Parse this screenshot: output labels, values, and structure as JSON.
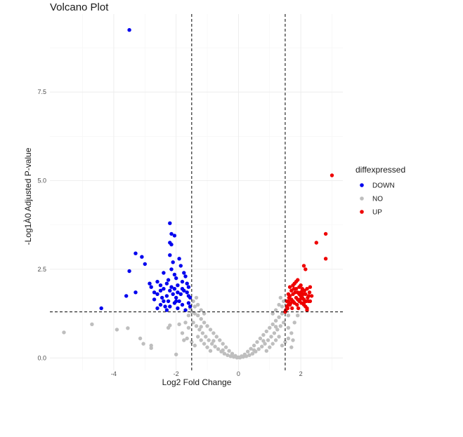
{
  "chart_data": {
    "type": "scatter",
    "title": "Volcano Plot",
    "xlabel": "Log2 Fold Change",
    "ylabel": "-Log1À0 Adjusted P-value",
    "xlim": [
      -6.05,
      3.35
    ],
    "ylim": [
      -0.35,
      9.7
    ],
    "x_ticks": [
      -4,
      -2,
      0,
      2
    ],
    "x_tick_labels": [
      "-4",
      "-2",
      "0",
      "2"
    ],
    "y_ticks": [
      0,
      2.5,
      5,
      7.5
    ],
    "y_tick_labels": [
      "0.0",
      "2.5",
      "5.0",
      "7.5"
    ],
    "grid": true,
    "thresholds": {
      "x": [
        -1.5,
        1.5
      ],
      "y": 1.3
    },
    "legend": {
      "title": "diffexpressed",
      "position": "right",
      "entries": [
        {
          "label": "DOWN",
          "color": "#0000ee"
        },
        {
          "label": "NO",
          "color": "#bebebe"
        },
        {
          "label": "UP",
          "color": "#ee0000"
        }
      ]
    },
    "series": [
      {
        "name": "NO",
        "color": "#bebebe",
        "points": [
          [
            -5.6,
            0.72
          ],
          [
            -4.7,
            0.95
          ],
          [
            -3.9,
            0.8
          ],
          [
            -3.55,
            0.84
          ],
          [
            -3.15,
            0.55
          ],
          [
            -3.05,
            0.4
          ],
          [
            -2.8,
            0.35
          ],
          [
            -2.8,
            0.28
          ],
          [
            -2.0,
            0.1
          ],
          [
            -2.2,
            0.92
          ],
          [
            -2.25,
            0.85
          ],
          [
            -1.9,
            0.95
          ],
          [
            -1.5,
            1.3
          ],
          [
            -1.4,
            1.25
          ],
          [
            -1.3,
            1.2
          ],
          [
            -1.2,
            1.1
          ],
          [
            -1.1,
            1.0
          ],
          [
            -1.0,
            0.9
          ],
          [
            -0.9,
            0.8
          ],
          [
            -0.8,
            0.7
          ],
          [
            -0.7,
            0.6
          ],
          [
            -0.6,
            0.5
          ],
          [
            -0.5,
            0.4
          ],
          [
            -0.4,
            0.3
          ],
          [
            -0.3,
            0.2
          ],
          [
            -0.2,
            0.12
          ],
          [
            -0.1,
            0.06
          ],
          [
            0.0,
            0.02
          ],
          [
            0.1,
            0.05
          ],
          [
            0.2,
            0.1
          ],
          [
            0.3,
            0.18
          ],
          [
            0.4,
            0.26
          ],
          [
            0.5,
            0.35
          ],
          [
            0.6,
            0.45
          ],
          [
            0.7,
            0.55
          ],
          [
            0.8,
            0.65
          ],
          [
            0.9,
            0.75
          ],
          [
            1.0,
            0.85
          ],
          [
            1.1,
            0.95
          ],
          [
            1.2,
            1.05
          ],
          [
            1.3,
            1.15
          ],
          [
            1.4,
            1.25
          ],
          [
            1.5,
            1.3
          ],
          [
            -1.45,
            1.0
          ],
          [
            -1.35,
            0.9
          ],
          [
            -1.25,
            0.8
          ],
          [
            -1.15,
            0.7
          ],
          [
            -1.05,
            0.6
          ],
          [
            -0.95,
            0.5
          ],
          [
            -0.85,
            0.4
          ],
          [
            -0.75,
            0.32
          ],
          [
            -0.65,
            0.25
          ],
          [
            -0.55,
            0.18
          ],
          [
            -0.45,
            0.12
          ],
          [
            -0.35,
            0.08
          ],
          [
            -0.25,
            0.05
          ],
          [
            -0.15,
            0.03
          ],
          [
            0.15,
            0.03
          ],
          [
            0.25,
            0.05
          ],
          [
            0.35,
            0.08
          ],
          [
            0.45,
            0.12
          ],
          [
            0.55,
            0.18
          ],
          [
            0.65,
            0.25
          ],
          [
            0.75,
            0.32
          ],
          [
            0.85,
            0.4
          ],
          [
            0.95,
            0.5
          ],
          [
            1.05,
            0.6
          ],
          [
            1.15,
            0.7
          ],
          [
            1.25,
            0.8
          ],
          [
            1.35,
            0.9
          ],
          [
            1.45,
            1.0
          ],
          [
            -1.55,
            1.4
          ],
          [
            -1.6,
            1.2
          ],
          [
            -1.7,
            1.0
          ],
          [
            -1.8,
            0.7
          ],
          [
            -1.65,
            0.55
          ],
          [
            -1.5,
            0.45
          ],
          [
            -1.4,
            0.35
          ],
          [
            -1.3,
            0.6
          ],
          [
            -1.2,
            0.5
          ],
          [
            -1.1,
            0.4
          ],
          [
            -1.0,
            0.3
          ],
          [
            -0.9,
            0.2
          ],
          [
            0.9,
            0.2
          ],
          [
            1.0,
            0.3
          ],
          [
            1.1,
            0.4
          ],
          [
            1.2,
            0.5
          ],
          [
            1.3,
            0.6
          ],
          [
            1.4,
            0.35
          ],
          [
            1.5,
            0.45
          ],
          [
            1.6,
            0.55
          ],
          [
            1.7,
            0.7
          ],
          [
            1.8,
            1.0
          ],
          [
            1.6,
            1.2
          ],
          [
            1.55,
            1.4
          ],
          [
            -1.4,
            1.45
          ],
          [
            -1.3,
            1.5
          ],
          [
            -1.2,
            1.35
          ],
          [
            -1.1,
            1.25
          ],
          [
            1.1,
            1.25
          ],
          [
            1.2,
            1.35
          ],
          [
            1.3,
            1.5
          ],
          [
            1.4,
            1.45
          ],
          [
            1.45,
            1.6
          ],
          [
            1.35,
            1.7
          ],
          [
            -1.35,
            1.7
          ],
          [
            -1.45,
            1.6
          ],
          [
            0.05,
            0.01
          ],
          [
            -0.05,
            0.01
          ],
          [
            0.5,
            0.22
          ],
          [
            -0.5,
            0.22
          ],
          [
            0.8,
            0.48
          ],
          [
            -0.8,
            0.48
          ],
          [
            1.2,
            0.88
          ],
          [
            -1.2,
            0.88
          ],
          [
            1.6,
            0.85
          ],
          [
            -1.6,
            0.85
          ],
          [
            1.75,
            0.5
          ],
          [
            -1.75,
            0.5
          ],
          [
            1.9,
            1.2
          ],
          [
            1.7,
            0.3
          ]
        ]
      },
      {
        "name": "DOWN",
        "color": "#0000ee",
        "points": [
          [
            -3.5,
            9.25
          ],
          [
            -4.4,
            1.4
          ],
          [
            -3.6,
            1.75
          ],
          [
            -3.5,
            2.45
          ],
          [
            -3.3,
            2.95
          ],
          [
            -3.1,
            2.85
          ],
          [
            -3.0,
            2.65
          ],
          [
            -3.3,
            1.85
          ],
          [
            -2.85,
            2.1
          ],
          [
            -2.8,
            2.0
          ],
          [
            -2.6,
            2.15
          ],
          [
            -2.5,
            2.05
          ],
          [
            -2.4,
            2.4
          ],
          [
            -2.2,
            3.8
          ],
          [
            -2.15,
            3.5
          ],
          [
            -2.05,
            3.45
          ],
          [
            -2.2,
            3.25
          ],
          [
            -2.15,
            3.2
          ],
          [
            -2.2,
            2.9
          ],
          [
            -2.1,
            2.7
          ],
          [
            -2.15,
            2.5
          ],
          [
            -2.05,
            2.35
          ],
          [
            -2.0,
            2.25
          ],
          [
            -2.25,
            2.2
          ],
          [
            -2.3,
            2.1
          ],
          [
            -2.4,
            1.95
          ],
          [
            -2.5,
            1.9
          ],
          [
            -2.6,
            1.8
          ],
          [
            -2.7,
            1.85
          ],
          [
            -2.7,
            1.65
          ],
          [
            -1.9,
            2.8
          ],
          [
            -1.85,
            2.6
          ],
          [
            -1.75,
            2.4
          ],
          [
            -1.7,
            2.3
          ],
          [
            -1.8,
            2.15
          ],
          [
            -1.6,
            2.0
          ],
          [
            -1.65,
            1.85
          ],
          [
            -1.55,
            1.7
          ],
          [
            -1.6,
            1.55
          ],
          [
            -1.55,
            1.45
          ],
          [
            -1.7,
            1.35
          ],
          [
            -1.8,
            1.5
          ],
          [
            -1.9,
            1.6
          ],
          [
            -2.0,
            1.7
          ],
          [
            -2.1,
            1.8
          ],
          [
            -2.2,
            1.9
          ],
          [
            -2.3,
            1.75
          ],
          [
            -2.4,
            1.6
          ],
          [
            -2.5,
            1.5
          ],
          [
            -2.6,
            1.4
          ],
          [
            -1.75,
            1.9
          ],
          [
            -1.85,
            1.8
          ],
          [
            -1.95,
            1.85
          ],
          [
            -2.05,
            1.95
          ],
          [
            -2.15,
            2.0
          ],
          [
            -1.65,
            2.1
          ],
          [
            -1.95,
            2.05
          ],
          [
            -2.25,
            1.6
          ],
          [
            -2.35,
            1.45
          ],
          [
            -2.05,
            1.55
          ],
          [
            -1.95,
            1.4
          ],
          [
            -2.45,
            1.7
          ],
          [
            -1.6,
            1.75
          ],
          [
            -1.8,
            1.95
          ],
          [
            -2.0,
            1.6
          ],
          [
            -2.2,
            1.45
          ],
          [
            -2.3,
            1.35
          ]
        ]
      },
      {
        "name": "UP",
        "color": "#ee0000",
        "points": [
          [
            3.0,
            5.15
          ],
          [
            2.8,
            3.5
          ],
          [
            2.5,
            3.25
          ],
          [
            2.8,
            2.8
          ],
          [
            2.1,
            2.6
          ],
          [
            2.15,
            2.5
          ],
          [
            2.3,
            2.0
          ],
          [
            2.35,
            1.75
          ],
          [
            2.25,
            1.6
          ],
          [
            2.1,
            1.5
          ],
          [
            2.2,
            1.4
          ],
          [
            1.5,
            1.3
          ],
          [
            1.55,
            1.45
          ],
          [
            1.6,
            1.6
          ],
          [
            1.65,
            1.75
          ],
          [
            1.7,
            1.9
          ],
          [
            1.75,
            2.05
          ],
          [
            1.8,
            2.1
          ],
          [
            1.85,
            2.15
          ],
          [
            1.9,
            2.2
          ],
          [
            1.95,
            2.0
          ],
          [
            2.0,
            1.85
          ],
          [
            2.05,
            1.7
          ],
          [
            2.1,
            1.55
          ],
          [
            2.15,
            1.45
          ],
          [
            2.2,
            1.35
          ],
          [
            1.55,
            1.6
          ],
          [
            1.6,
            1.8
          ],
          [
            1.65,
            1.5
          ],
          [
            1.7,
            1.65
          ],
          [
            1.75,
            1.8
          ],
          [
            1.8,
            1.55
          ],
          [
            1.85,
            1.7
          ],
          [
            1.9,
            1.85
          ],
          [
            1.95,
            1.6
          ],
          [
            2.0,
            1.75
          ],
          [
            2.05,
            1.9
          ],
          [
            2.1,
            1.65
          ],
          [
            2.15,
            1.8
          ],
          [
            2.2,
            1.95
          ],
          [
            2.25,
            1.75
          ],
          [
            2.3,
            1.6
          ],
          [
            1.52,
            1.35
          ],
          [
            1.58,
            1.4
          ],
          [
            1.62,
            1.7
          ],
          [
            1.68,
            1.55
          ],
          [
            1.72,
            1.4
          ],
          [
            1.78,
            1.95
          ],
          [
            1.82,
            1.85
          ],
          [
            1.88,
            1.5
          ],
          [
            1.92,
            1.4
          ],
          [
            1.98,
            1.65
          ],
          [
            2.02,
            1.55
          ],
          [
            2.08,
            1.8
          ],
          [
            2.12,
            1.9
          ],
          [
            2.18,
            1.6
          ],
          [
            2.22,
            1.7
          ],
          [
            2.28,
            1.85
          ],
          [
            1.65,
            2.0
          ],
          [
            1.75,
            1.6
          ],
          [
            1.85,
            1.95
          ],
          [
            1.95,
            1.8
          ],
          [
            2.05,
            1.95
          ],
          [
            1.6,
            1.5
          ],
          [
            2.0,
            2.05
          ],
          [
            1.9,
            1.65
          ]
        ]
      }
    ]
  }
}
